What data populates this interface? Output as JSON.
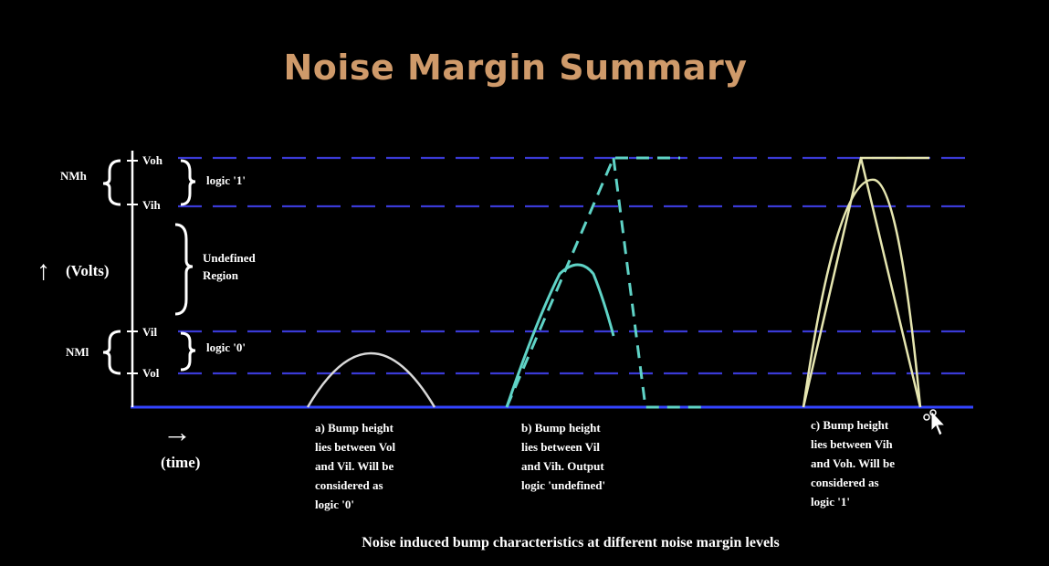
{
  "title": "Noise Margin Summary",
  "y_axis": {
    "label": "(Volts)",
    "arrow": "↑"
  },
  "x_axis": {
    "label": "(time)",
    "arrow": "→"
  },
  "levels": {
    "voh": "Voh",
    "vih": "Vih",
    "vil": "Vil",
    "vol": "Vol"
  },
  "margins": {
    "nmh": "NMh",
    "nml": "NMl"
  },
  "regions": {
    "logic1": "logic '1'",
    "undefined_line1": "Undefined",
    "undefined_line2": "Region",
    "logic0": "logic '0'"
  },
  "captions": {
    "a": [
      "a) Bump height",
      "lies between Vol",
      "and Vil. Will be",
      "considered as",
      "logic '0'"
    ],
    "b": [
      "b) Bump height",
      "lies between Vil",
      "and Vih. Output",
      "logic 'undefined'"
    ],
    "c": [
      "c) Bump height",
      "lies between Vih",
      "and Voh. Will be",
      "considered as",
      "logic '1'"
    ]
  },
  "footer": "Noise induced bump characteristics at different noise margin levels",
  "colors": {
    "title": "#cf9a6a",
    "dashed_level": "#3a3ad6",
    "baseline": "#3344ff",
    "bump_a": "#d8d8d8",
    "bump_b": "#5fd3c6",
    "bump_c": "#e6e6b0"
  }
}
